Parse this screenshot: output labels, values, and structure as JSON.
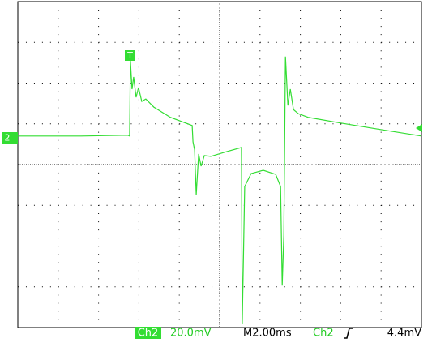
{
  "chart_data": {
    "type": "line",
    "color": "#33dd33",
    "grid": true,
    "xlim": [
      0,
      10
    ],
    "ylim": [
      -4,
      4
    ],
    "x": [
      0,
      1.57,
      2.73,
      2.77,
      2.79,
      2.83,
      2.87,
      2.93,
      2.99,
      3.07,
      3.17,
      3.37,
      3.78,
      4.32,
      4.34,
      4.38,
      4.42,
      4.48,
      4.54,
      4.62,
      4.78,
      5.18,
      5.54,
      5.56,
      5.62,
      5.78,
      6.08,
      6.39,
      6.51,
      6.55,
      6.59,
      6.63,
      6.69,
      6.75,
      6.83,
      6.95,
      7.19,
      7.99,
      8.99,
      10
    ],
    "values": [
      0.7,
      0.7,
      0.72,
      0.7,
      2.55,
      1.85,
      2.15,
      1.65,
      1.89,
      1.55,
      1.61,
      1.41,
      1.16,
      0.96,
      0.56,
      0.36,
      -0.74,
      0.26,
      -0.04,
      0.22,
      0.2,
      0.32,
      0.42,
      -3.92,
      -0.54,
      -0.22,
      -0.14,
      -0.24,
      -0.54,
      -2.97,
      -1.73,
      2.65,
      1.45,
      1.85,
      1.35,
      1.25,
      1.16,
      1.02,
      0.86,
      0.7
    ],
    "trigger_marker": "T",
    "channel_marker": "2",
    "status": {
      "channel": "Ch2",
      "scale": "20.0mV",
      "timebase": "M2.00ms",
      "trigger_channel": "Ch2",
      "trigger_level": "4.4mV"
    }
  }
}
